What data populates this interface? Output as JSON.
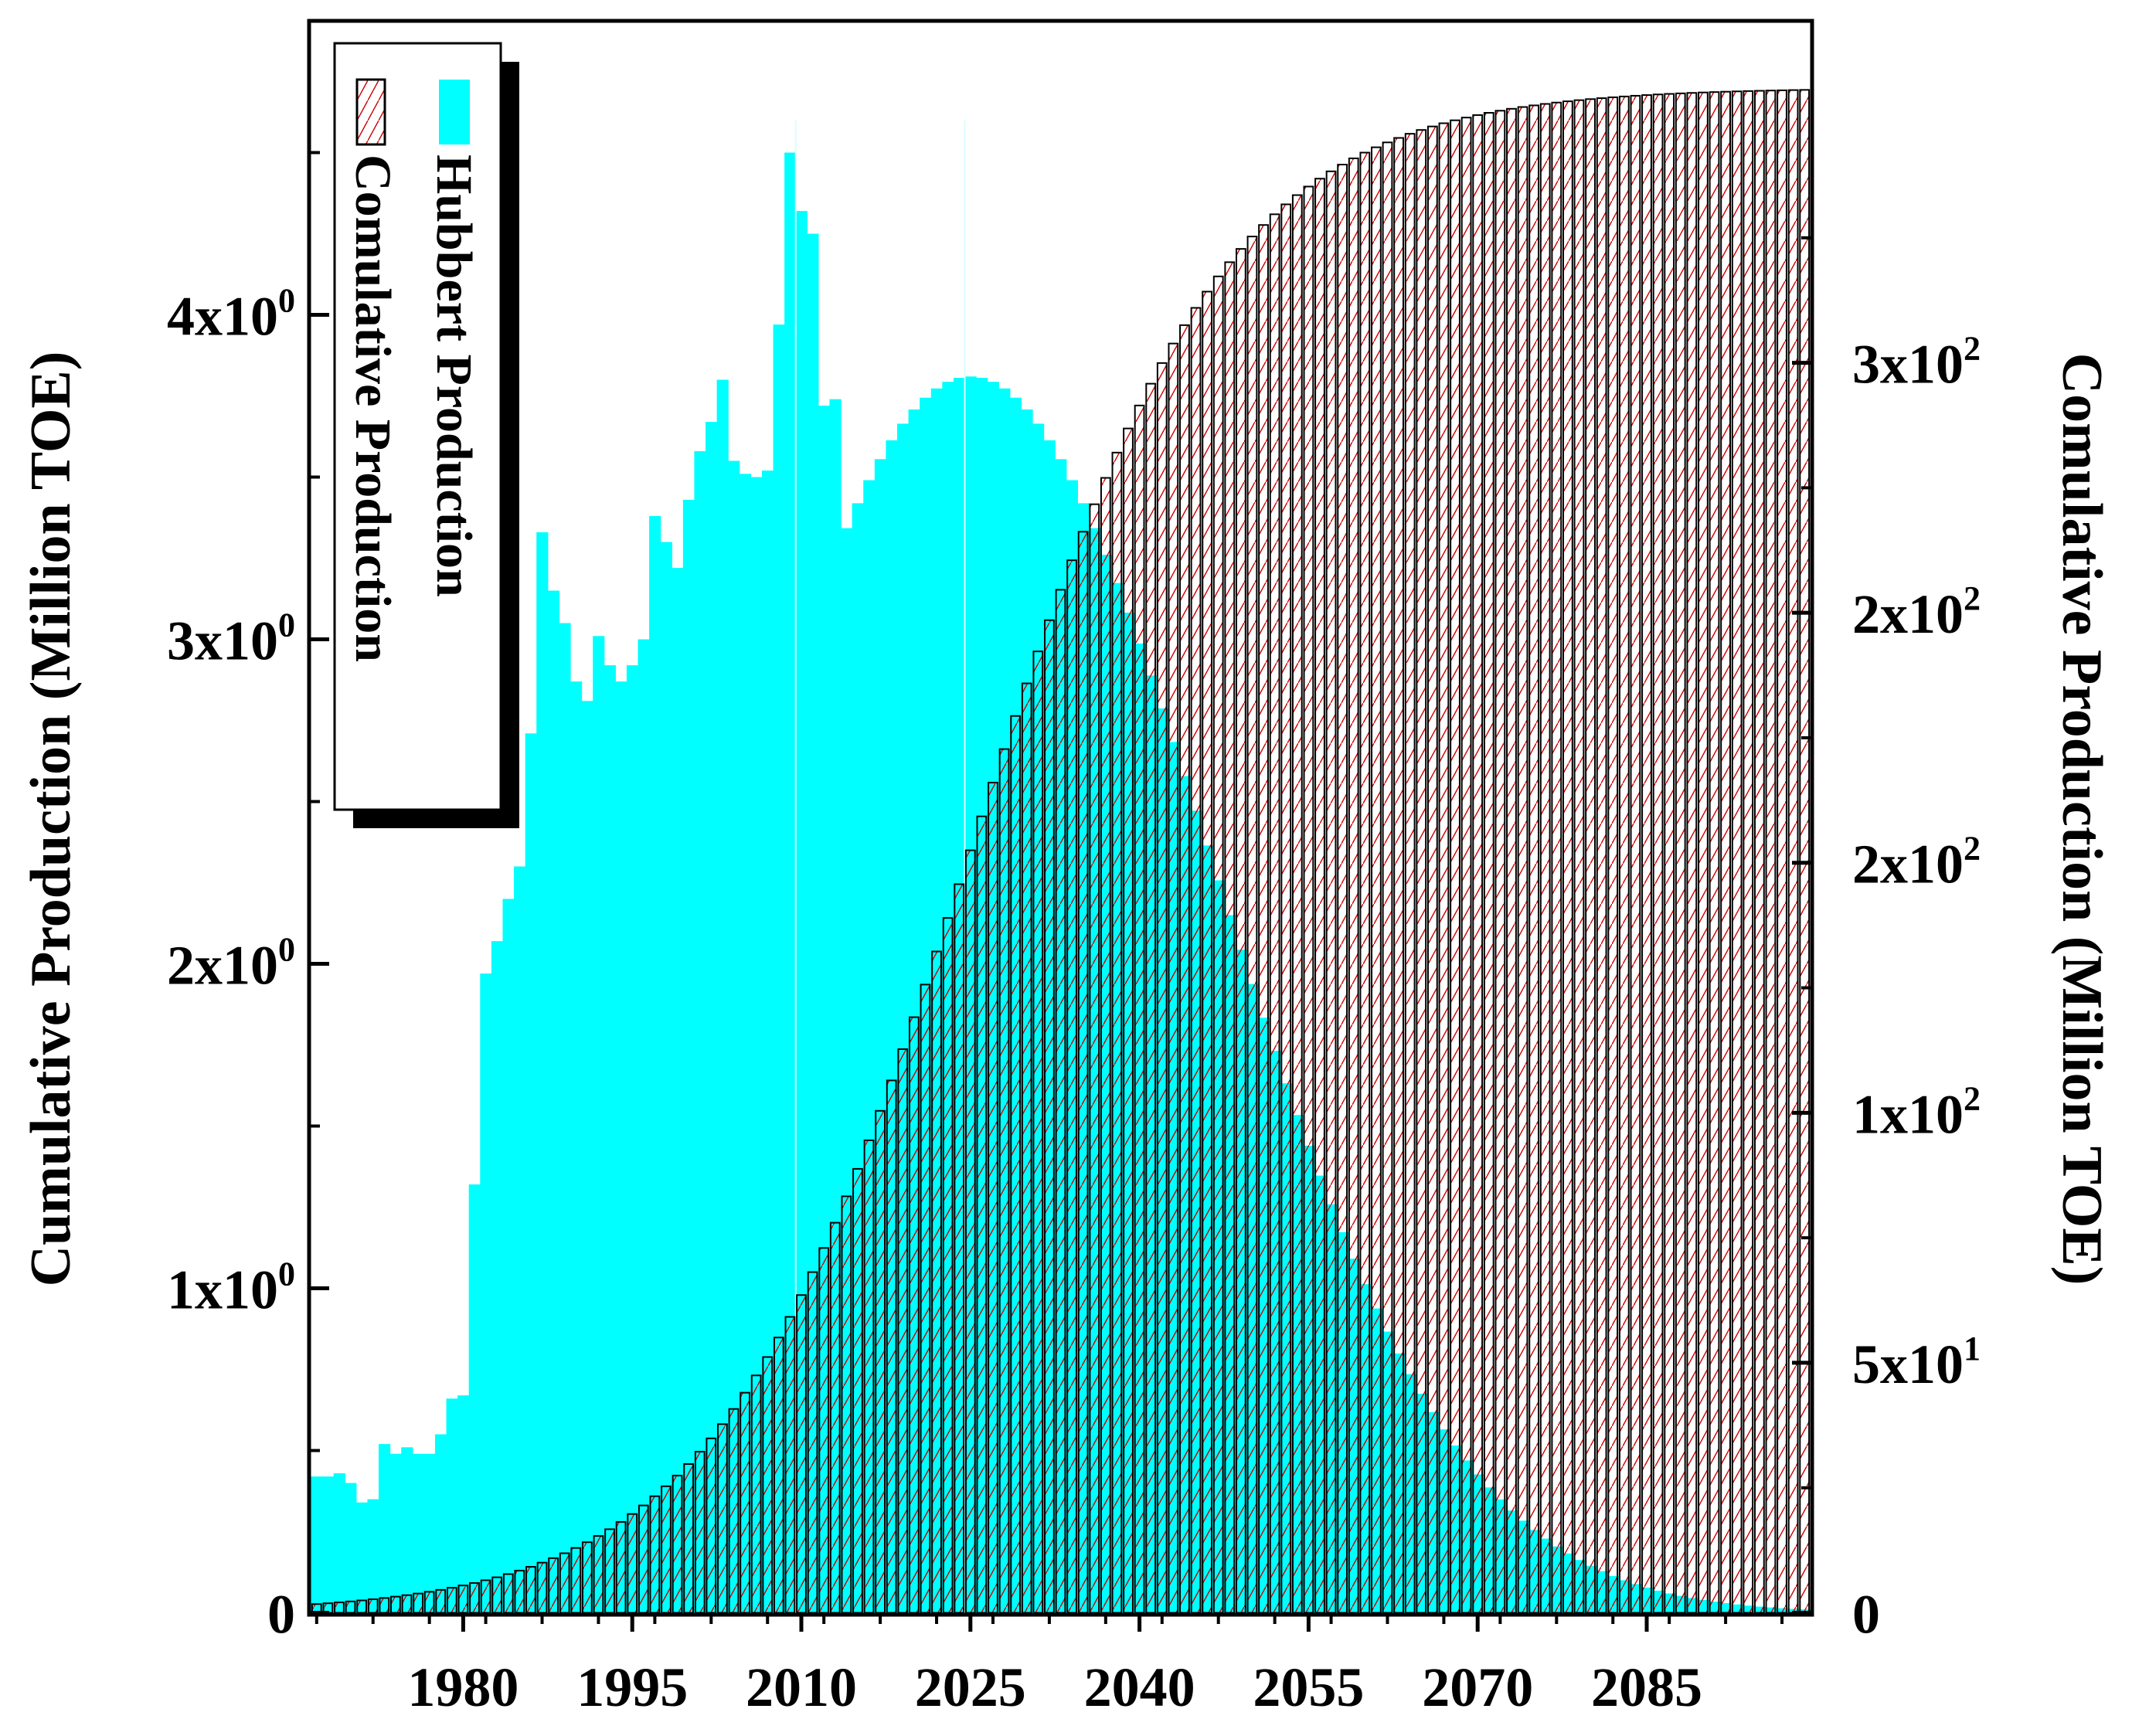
{
  "chart_data": {
    "type": "bar",
    "x_start_year": 1967,
    "x_end_year": 2099,
    "x_tick_labels": [
      "1980",
      "1995",
      "2010",
      "2025",
      "2040",
      "2055",
      "2070",
      "2085"
    ],
    "x_tick_values": [
      1980,
      1995,
      2010,
      2025,
      2040,
      2055,
      2070,
      2085
    ],
    "y_left": {
      "title": "Cumulative Production (Million TOE)",
      "range": [
        0,
        4.9
      ],
      "ticks": [
        {
          "value": 0,
          "base": "0",
          "exp": ""
        },
        {
          "value": 1,
          "base": "1x10",
          "exp": "0"
        },
        {
          "value": 2,
          "base": "2x10",
          "exp": "0"
        },
        {
          "value": 3,
          "base": "3x10",
          "exp": "0"
        },
        {
          "value": 4,
          "base": "4x10",
          "exp": "0"
        }
      ]
    },
    "y_right": {
      "title": "Comulative Production (Million TOE)",
      "range": [
        0,
        318
      ],
      "ticks": [
        {
          "value": 0,
          "base": "0",
          "exp": ""
        },
        {
          "value": 50,
          "base": "5x10",
          "exp": "1"
        },
        {
          "value": 100,
          "base": "1x10",
          "exp": "2"
        },
        {
          "value": 150,
          "base": "2x10",
          "exp": "2"
        },
        {
          "value": 200,
          "base": "2x10",
          "exp": "2"
        },
        {
          "value": 250,
          "base": "3x10",
          "exp": "2"
        }
      ]
    },
    "series": [
      {
        "name": "Hubbert Production",
        "axis": "left",
        "color": "#00ffff",
        "actual": [
          [
            1967,
            0.42
          ],
          [
            1968,
            0.42
          ],
          [
            1969,
            0.43
          ],
          [
            1970,
            0.4
          ],
          [
            1971,
            0.34
          ],
          [
            1972,
            0.35
          ],
          [
            1973,
            0.52
          ],
          [
            1974,
            0.49
          ],
          [
            1975,
            0.51
          ],
          [
            1976,
            0.49
          ],
          [
            1977,
            0.49
          ],
          [
            1978,
            0.55
          ],
          [
            1979,
            0.66
          ],
          [
            1980,
            0.67
          ],
          [
            1981,
            1.32
          ],
          [
            1982,
            1.97
          ],
          [
            1983,
            2.07
          ],
          [
            1984,
            2.2
          ],
          [
            1985,
            2.3
          ],
          [
            1986,
            2.71
          ],
          [
            1987,
            3.33
          ],
          [
            1988,
            3.15
          ],
          [
            1989,
            3.05
          ],
          [
            1990,
            2.87
          ],
          [
            1991,
            2.81
          ],
          [
            1992,
            3.01
          ],
          [
            1993,
            2.92
          ],
          [
            1994,
            2.87
          ],
          [
            1995,
            2.92
          ],
          [
            1996,
            3.0
          ],
          [
            1997,
            3.38
          ],
          [
            1998,
            3.3
          ],
          [
            1999,
            3.22
          ],
          [
            2000,
            3.43
          ],
          [
            2001,
            3.58
          ],
          [
            2002,
            3.67
          ],
          [
            2003,
            3.8
          ],
          [
            2004,
            3.55
          ],
          [
            2005,
            3.51
          ],
          [
            2006,
            3.5
          ],
          [
            2007,
            3.52
          ],
          [
            2008,
            3.97
          ],
          [
            2009,
            4.5
          ],
          [
            2010,
            4.32
          ],
          [
            2011,
            4.25
          ],
          [
            2012,
            3.72
          ],
          [
            2013,
            3.74
          ]
        ],
        "forecast_peak_year": 2025,
        "forecast_peak_value": 3.81,
        "forecast_width_years": 21.5
      },
      {
        "name": "Comulative Production",
        "axis": "right",
        "color": "#ffffff",
        "edge_color": "#000000",
        "hatch_color": "#cc0000",
        "logistic_total": 305,
        "logistic_midyear": 2025,
        "logistic_rate": 0.089
      }
    ],
    "legend": {
      "position": "top-left",
      "entries": [
        "Hubbert Production",
        "Comulative Production"
      ]
    }
  }
}
